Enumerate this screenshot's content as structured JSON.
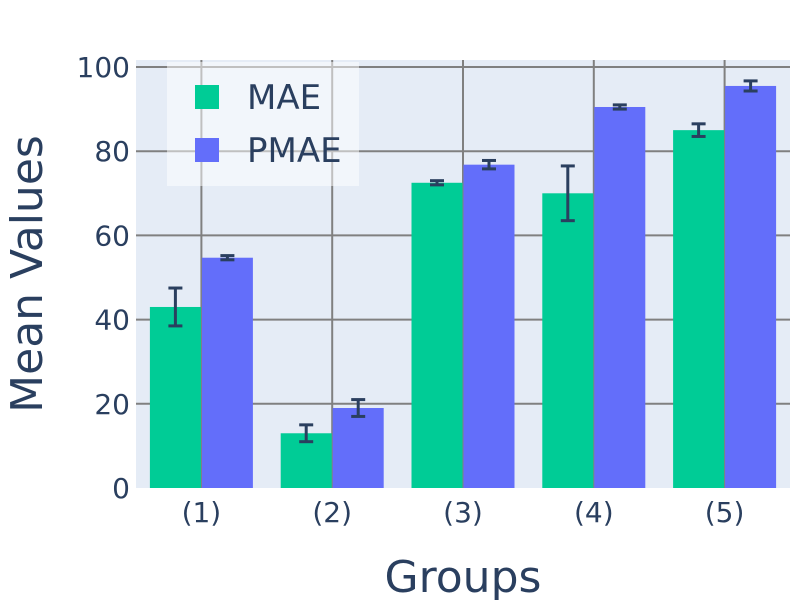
{
  "chart_data": {
    "type": "bar",
    "title": "",
    "xlabel": "Groups",
    "ylabel": "Mean Values",
    "categories": [
      "(1)",
      "(2)",
      "(3)",
      "(4)",
      "(5)"
    ],
    "ylim": [
      0,
      100
    ],
    "yticks": [
      0,
      20,
      40,
      60,
      80,
      100
    ],
    "grid": true,
    "legend_position": "top-left",
    "series": [
      {
        "name": "MAE",
        "color": "#00cc96",
        "values": [
          43,
          13,
          72.5,
          70,
          85
        ],
        "errors": [
          4.5,
          2,
          0.5,
          6.5,
          1.5
        ]
      },
      {
        "name": "PMAE",
        "color": "#636efa",
        "values": [
          54.7,
          19,
          76.8,
          90.5,
          95.5
        ],
        "errors": [
          0.5,
          2,
          1,
          0.5,
          1.2
        ]
      }
    ]
  }
}
